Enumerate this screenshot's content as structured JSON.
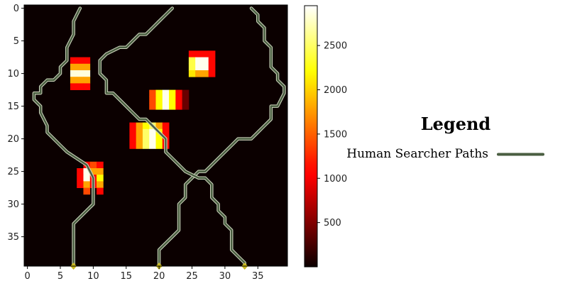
{
  "chart_data": {
    "type": "heatmap",
    "grid": {
      "rows": 40,
      "cols": 40
    },
    "background_value": 0,
    "cells": [
      {
        "x": 7,
        "y": 8,
        "v": 1100
      },
      {
        "x": 8,
        "y": 8,
        "v": 1100
      },
      {
        "x": 9,
        "y": 8,
        "v": 1100
      },
      {
        "x": 7,
        "y": 9,
        "v": 1800
      },
      {
        "x": 8,
        "y": 9,
        "v": 1800
      },
      {
        "x": 9,
        "y": 9,
        "v": 1800
      },
      {
        "x": 7,
        "y": 10,
        "v": 2850
      },
      {
        "x": 8,
        "y": 10,
        "v": 2850
      },
      {
        "x": 9,
        "y": 10,
        "v": 2850
      },
      {
        "x": 7,
        "y": 11,
        "v": 1800
      },
      {
        "x": 8,
        "y": 11,
        "v": 1800
      },
      {
        "x": 9,
        "y": 11,
        "v": 1800
      },
      {
        "x": 7,
        "y": 12,
        "v": 1100
      },
      {
        "x": 8,
        "y": 12,
        "v": 1100
      },
      {
        "x": 9,
        "y": 12,
        "v": 1100
      },
      {
        "x": 25,
        "y": 7,
        "v": 1100
      },
      {
        "x": 26,
        "y": 7,
        "v": 1100
      },
      {
        "x": 27,
        "y": 7,
        "v": 1100
      },
      {
        "x": 28,
        "y": 7,
        "v": 1100
      },
      {
        "x": 25,
        "y": 8,
        "v": 2400
      },
      {
        "x": 26,
        "y": 8,
        "v": 2900
      },
      {
        "x": 27,
        "y": 8,
        "v": 2900
      },
      {
        "x": 28,
        "y": 8,
        "v": 1100
      },
      {
        "x": 25,
        "y": 9,
        "v": 2400
      },
      {
        "x": 26,
        "y": 9,
        "v": 2900
      },
      {
        "x": 27,
        "y": 9,
        "v": 2900
      },
      {
        "x": 28,
        "y": 9,
        "v": 1100
      },
      {
        "x": 25,
        "y": 10,
        "v": 2100
      },
      {
        "x": 26,
        "y": 10,
        "v": 1800
      },
      {
        "x": 27,
        "y": 10,
        "v": 1800
      },
      {
        "x": 28,
        "y": 10,
        "v": 1100
      },
      {
        "x": 19,
        "y": 13,
        "v": 1400
      },
      {
        "x": 20,
        "y": 13,
        "v": 2200
      },
      {
        "x": 21,
        "y": 13,
        "v": 2900
      },
      {
        "x": 22,
        "y": 13,
        "v": 2200
      },
      {
        "x": 23,
        "y": 13,
        "v": 1100
      },
      {
        "x": 24,
        "y": 13,
        "v": 400
      },
      {
        "x": 19,
        "y": 14,
        "v": 1400
      },
      {
        "x": 20,
        "y": 14,
        "v": 2200
      },
      {
        "x": 21,
        "y": 14,
        "v": 2900
      },
      {
        "x": 22,
        "y": 14,
        "v": 2200
      },
      {
        "x": 23,
        "y": 14,
        "v": 1100
      },
      {
        "x": 24,
        "y": 14,
        "v": 400
      },
      {
        "x": 19,
        "y": 15,
        "v": 1400
      },
      {
        "x": 20,
        "y": 15,
        "v": 2200
      },
      {
        "x": 21,
        "y": 15,
        "v": 2900
      },
      {
        "x": 22,
        "y": 15,
        "v": 2200
      },
      {
        "x": 23,
        "y": 15,
        "v": 1100
      },
      {
        "x": 24,
        "y": 15,
        "v": 400
      },
      {
        "x": 16,
        "y": 18,
        "v": 1100
      },
      {
        "x": 17,
        "y": 18,
        "v": 1800
      },
      {
        "x": 18,
        "y": 18,
        "v": 2200
      },
      {
        "x": 19,
        "y": 18,
        "v": 2500
      },
      {
        "x": 20,
        "y": 18,
        "v": 1800
      },
      {
        "x": 21,
        "y": 18,
        "v": 1100
      },
      {
        "x": 16,
        "y": 19,
        "v": 1100
      },
      {
        "x": 17,
        "y": 19,
        "v": 1800
      },
      {
        "x": 18,
        "y": 19,
        "v": 2500
      },
      {
        "x": 19,
        "y": 19,
        "v": 2900
      },
      {
        "x": 20,
        "y": 19,
        "v": 2200
      },
      {
        "x": 21,
        "y": 19,
        "v": 1100
      },
      {
        "x": 16,
        "y": 20,
        "v": 1100
      },
      {
        "x": 17,
        "y": 20,
        "v": 1800
      },
      {
        "x": 18,
        "y": 20,
        "v": 2500
      },
      {
        "x": 19,
        "y": 20,
        "v": 2900
      },
      {
        "x": 20,
        "y": 20,
        "v": 2200
      },
      {
        "x": 21,
        "y": 20,
        "v": 1100
      },
      {
        "x": 16,
        "y": 21,
        "v": 1100
      },
      {
        "x": 17,
        "y": 21,
        "v": 1800
      },
      {
        "x": 18,
        "y": 21,
        "v": 2500
      },
      {
        "x": 19,
        "y": 21,
        "v": 2900
      },
      {
        "x": 20,
        "y": 21,
        "v": 2200
      },
      {
        "x": 21,
        "y": 21,
        "v": 1100
      },
      {
        "x": 9,
        "y": 24,
        "v": 1100
      },
      {
        "x": 10,
        "y": 24,
        "v": 1400
      },
      {
        "x": 11,
        "y": 24,
        "v": 1100
      },
      {
        "x": 8,
        "y": 25,
        "v": 1100
      },
      {
        "x": 9,
        "y": 25,
        "v": 2900
      },
      {
        "x": 10,
        "y": 25,
        "v": 1800
      },
      {
        "x": 11,
        "y": 25,
        "v": 1800
      },
      {
        "x": 8,
        "y": 26,
        "v": 1100
      },
      {
        "x": 9,
        "y": 26,
        "v": 2900
      },
      {
        "x": 10,
        "y": 26,
        "v": 1100
      },
      {
        "x": 11,
        "y": 26,
        "v": 2200
      },
      {
        "x": 8,
        "y": 27,
        "v": 1100
      },
      {
        "x": 9,
        "y": 27,
        "v": 1800
      },
      {
        "x": 10,
        "y": 27,
        "v": 1100
      },
      {
        "x": 11,
        "y": 27,
        "v": 1800
      },
      {
        "x": 9,
        "y": 28,
        "v": 1400
      },
      {
        "x": 11,
        "y": 28,
        "v": 1100
      }
    ],
    "x_ticks": [
      0,
      5,
      10,
      15,
      20,
      25,
      30,
      35
    ],
    "y_ticks": [
      0,
      5,
      10,
      15,
      20,
      25,
      30,
      35
    ],
    "colorbar": {
      "min": 0,
      "max": 2950,
      "ticks": [
        500,
        1000,
        1500,
        2000,
        2500
      ],
      "colormap": "hot"
    },
    "paths": [
      {
        "points": [
          [
            7,
            39.5
          ],
          [
            7,
            33
          ],
          [
            10,
            30
          ],
          [
            10,
            26
          ],
          [
            9.5,
            25
          ],
          [
            9,
            24
          ],
          [
            6,
            22
          ],
          [
            5,
            21
          ],
          [
            3,
            19
          ],
          [
            3,
            18
          ],
          [
            2,
            16
          ],
          [
            2,
            15
          ],
          [
            1,
            14
          ],
          [
            1,
            13
          ],
          [
            2,
            13
          ],
          [
            2,
            12
          ],
          [
            3,
            11
          ],
          [
            4,
            11
          ],
          [
            5,
            10
          ],
          [
            5,
            9
          ],
          [
            6,
            8
          ],
          [
            6,
            6
          ],
          [
            7,
            4
          ],
          [
            7,
            2
          ],
          [
            7.5,
            1
          ],
          [
            8,
            0
          ]
        ]
      },
      {
        "points": [
          [
            20,
            39.5
          ],
          [
            20,
            37
          ],
          [
            22,
            35
          ],
          [
            23,
            34
          ],
          [
            23,
            30
          ],
          [
            24,
            29
          ],
          [
            24,
            27
          ],
          [
            26,
            25
          ],
          [
            27,
            25
          ],
          [
            29,
            23
          ],
          [
            31,
            21
          ],
          [
            32,
            20
          ],
          [
            34,
            20
          ],
          [
            35,
            19
          ],
          [
            36,
            18
          ],
          [
            37,
            17
          ],
          [
            37,
            15
          ],
          [
            38,
            15
          ],
          [
            39,
            13
          ],
          [
            39,
            12
          ],
          [
            38,
            11
          ],
          [
            38,
            10
          ],
          [
            37,
            9
          ],
          [
            37,
            6
          ],
          [
            36,
            5
          ],
          [
            36,
            3
          ],
          [
            35,
            2
          ],
          [
            35,
            1
          ],
          [
            34,
            0
          ]
        ]
      },
      {
        "points": [
          [
            33,
            39.5
          ],
          [
            33,
            39
          ],
          [
            32,
            38
          ],
          [
            31,
            37
          ],
          [
            31,
            34
          ],
          [
            30,
            33
          ],
          [
            30,
            32
          ],
          [
            29,
            31
          ],
          [
            29,
            30
          ],
          [
            28,
            29
          ],
          [
            28,
            27
          ],
          [
            27,
            26
          ],
          [
            26,
            26
          ],
          [
            24,
            25
          ],
          [
            23,
            24
          ],
          [
            22,
            23
          ],
          [
            21,
            22
          ],
          [
            21,
            21
          ],
          [
            21,
            20
          ],
          [
            20,
            19
          ],
          [
            19,
            18
          ],
          [
            18,
            17
          ],
          [
            17,
            17
          ],
          [
            16,
            16
          ],
          [
            15,
            15
          ],
          [
            14,
            14
          ],
          [
            13,
            13
          ],
          [
            12,
            13
          ],
          [
            12,
            11
          ],
          [
            11,
            10
          ],
          [
            11,
            8
          ],
          [
            12,
            7
          ],
          [
            14,
            6
          ],
          [
            15,
            6
          ],
          [
            16,
            5
          ],
          [
            17,
            4
          ],
          [
            18,
            4
          ],
          [
            19,
            3
          ],
          [
            20,
            2
          ],
          [
            21,
            1
          ],
          [
            22,
            0
          ]
        ]
      }
    ],
    "markers": [
      {
        "x": 7,
        "y": 39.5
      },
      {
        "x": 20,
        "y": 39.5
      },
      {
        "x": 33,
        "y": 39.5
      }
    ],
    "legend": {
      "title": "Legend",
      "entries": [
        {
          "label": "Human Searcher Paths",
          "color": "#4a5e41"
        }
      ]
    },
    "colors": {
      "path": "#4a5e41",
      "path_glow": "#d0d8c0",
      "marker": "#c8b820"
    }
  }
}
